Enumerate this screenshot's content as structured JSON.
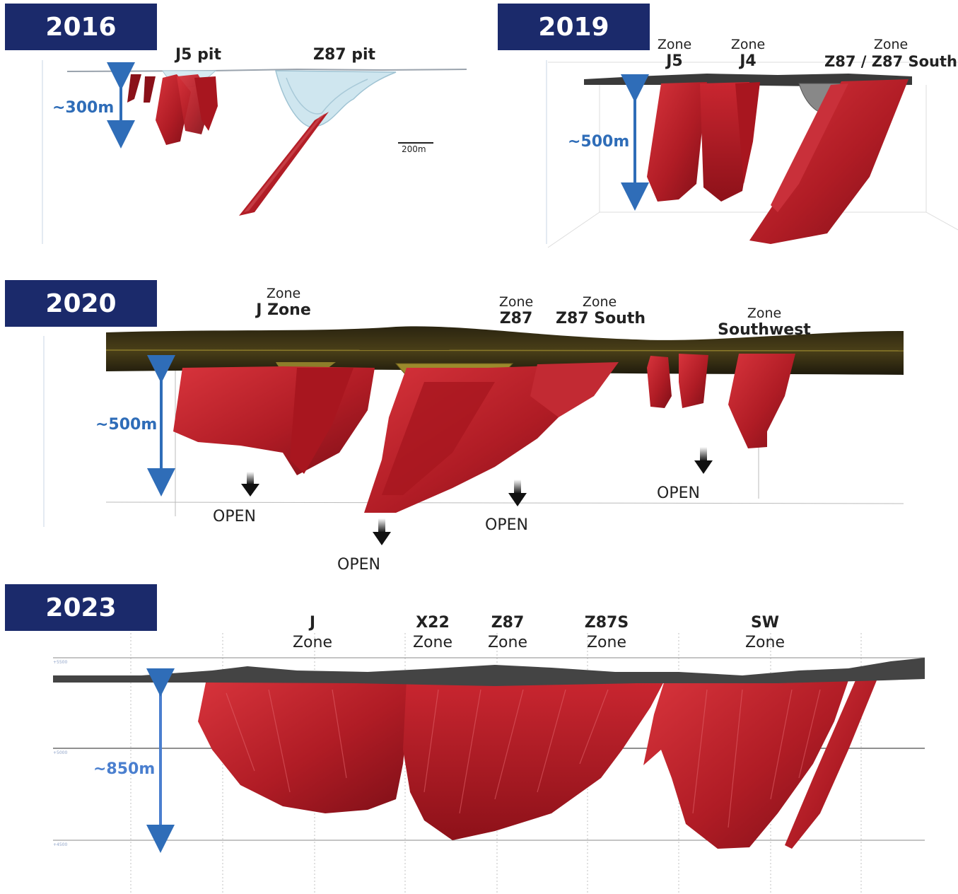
{
  "panels": {
    "p2016": {
      "year": "2016",
      "pit1": "J5 pit",
      "pit2": "Z87 pit",
      "depth": "~300m",
      "scale": "200m"
    },
    "p2019": {
      "year": "2019",
      "zones": [
        {
          "prefix": "Zone",
          "name": "J5"
        },
        {
          "prefix": "Zone",
          "name": "J4"
        },
        {
          "prefix": "Zone",
          "name": "Z87 / Z87 South"
        }
      ],
      "depth": "~500m"
    },
    "p2020": {
      "year": "2020",
      "zones": [
        {
          "prefix": "Zone",
          "name": "J Zone"
        },
        {
          "prefix": "Zone",
          "name": "Z87"
        },
        {
          "prefix": "Zone",
          "name": "Z87 South"
        },
        {
          "prefix": "Zone",
          "name": "Southwest"
        }
      ],
      "depth": "~500m",
      "open_label": "OPEN"
    },
    "p2023": {
      "year": "2023",
      "zones": [
        {
          "name": "J",
          "suffix": "Zone"
        },
        {
          "name": "X22",
          "suffix": "Zone"
        },
        {
          "name": "Z87",
          "suffix": "Zone"
        },
        {
          "name": "Z87S",
          "suffix": "Zone"
        },
        {
          "name": "SW",
          "suffix": "Zone"
        }
      ],
      "depth": "~850m",
      "elevations": [
        "+5500",
        "+5000",
        "+4500"
      ]
    }
  },
  "colors": {
    "header_bg": "#1b2a6b",
    "ore_red": "#c0222c",
    "depth_blue": "#2f6db8",
    "pit_blue": "#cfe6ef"
  }
}
